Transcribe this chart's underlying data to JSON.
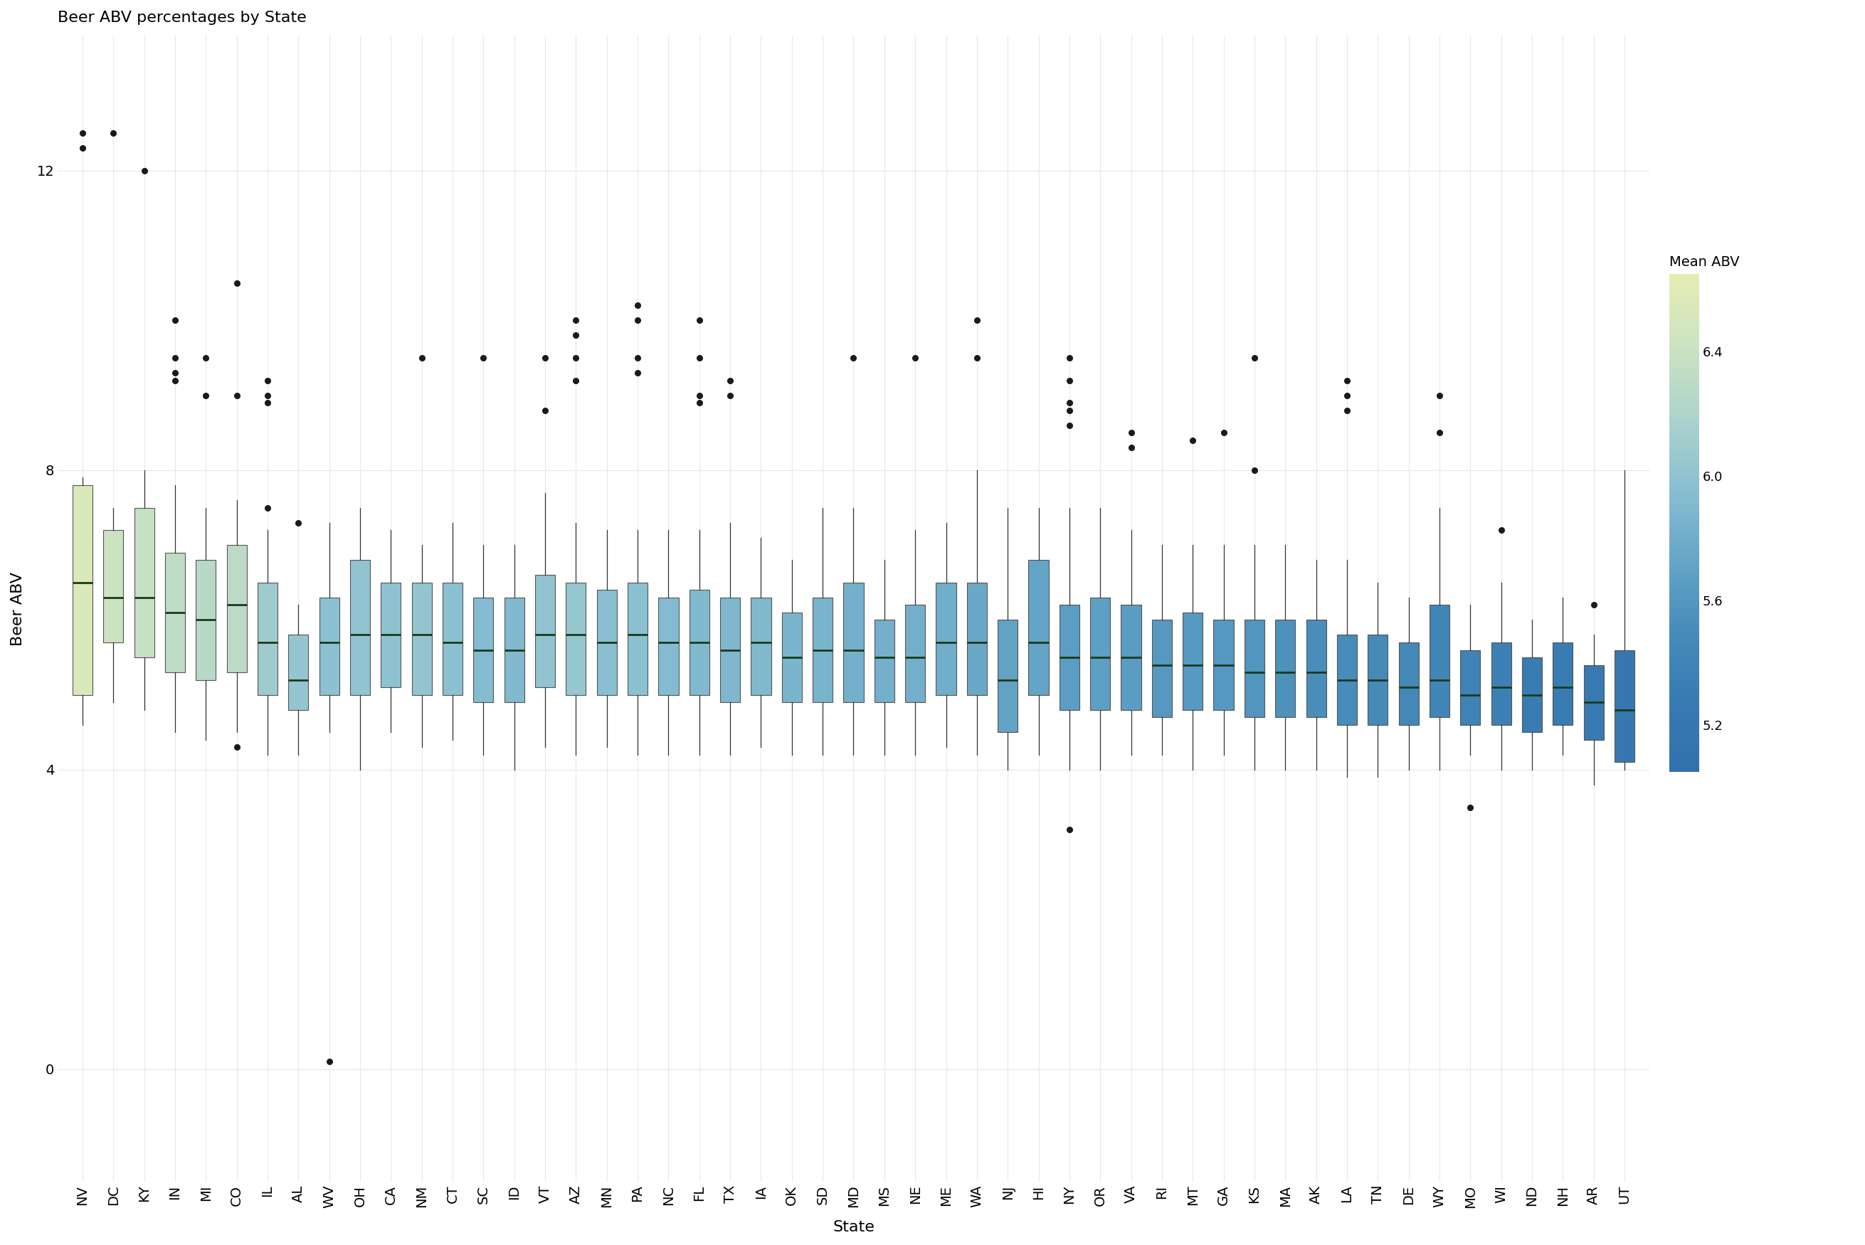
{
  "title": "Beer ABV percentages by State",
  "xlabel": "State",
  "ylabel": "Beer ABV",
  "legend_title": "Mean ABV",
  "colorbar_min": 5.05,
  "colorbar_max": 6.65,
  "colorbar_ticks": [
    5.2,
    5.6,
    6.0,
    6.4
  ],
  "background_color": "#ffffff",
  "panel_color": "#ffffff",
  "grid_color": "#e8e8e8",
  "states": [
    "NV",
    "DC",
    "KY",
    "IN",
    "MI",
    "CO",
    "IL",
    "AL",
    "WV",
    "OH",
    "CA",
    "NM",
    "CT",
    "SC",
    "ID",
    "VT",
    "AZ",
    "MN",
    "PA",
    "NC",
    "FL",
    "TX",
    "IA",
    "OK",
    "SD",
    "MD",
    "MS",
    "NE",
    "ME",
    "WA",
    "NJ",
    "HI",
    "NY",
    "OR",
    "VA",
    "RI",
    "MT",
    "GA",
    "KS",
    "MA",
    "AK",
    "LA",
    "TN",
    "DE",
    "WY",
    "MO",
    "WI",
    "ND",
    "NH",
    "AR",
    "UT"
  ],
  "mean_abv": [
    6.55,
    6.42,
    6.38,
    6.32,
    6.28,
    6.3,
    6.1,
    6.03,
    5.98,
    6.01,
    5.99,
    6.02,
    5.97,
    5.93,
    5.91,
    6.01,
    6.04,
    5.96,
    5.97,
    5.93,
    5.91,
    5.89,
    5.9,
    5.87,
    5.86,
    5.83,
    5.83,
    5.82,
    5.81,
    5.76,
    5.7,
    5.72,
    5.66,
    5.68,
    5.65,
    5.61,
    5.63,
    5.61,
    5.59,
    5.55,
    5.52,
    5.5,
    5.48,
    5.45,
    5.42,
    5.38,
    5.35,
    5.3,
    5.29,
    5.24,
    5.2
  ],
  "box_data": {
    "NV": {
      "q1": 5.0,
      "med": 6.5,
      "q3": 7.8,
      "whislo": 4.6,
      "whishi": 7.9,
      "fliers": [
        12.5,
        12.3
      ]
    },
    "DC": {
      "q1": 5.7,
      "med": 6.3,
      "q3": 7.2,
      "whislo": 4.9,
      "whishi": 7.5,
      "fliers": [
        12.5
      ]
    },
    "KY": {
      "q1": 5.5,
      "med": 6.3,
      "q3": 7.5,
      "whislo": 4.8,
      "whishi": 8.0,
      "fliers": [
        12.0
      ]
    },
    "IN": {
      "q1": 5.3,
      "med": 6.1,
      "q3": 6.9,
      "whislo": 4.5,
      "whishi": 7.8,
      "fliers": [
        10.0,
        9.5,
        9.3,
        9.2
      ]
    },
    "MI": {
      "q1": 5.2,
      "med": 6.0,
      "q3": 6.8,
      "whislo": 4.4,
      "whishi": 7.5,
      "fliers": [
        9.5,
        9.0
      ]
    },
    "CO": {
      "q1": 5.3,
      "med": 6.2,
      "q3": 7.0,
      "whislo": 4.5,
      "whishi": 7.6,
      "fliers": [
        10.5,
        9.0,
        4.3
      ]
    },
    "IL": {
      "q1": 5.0,
      "med": 5.7,
      "q3": 6.5,
      "whislo": 4.2,
      "whishi": 7.2,
      "fliers": [
        9.2,
        9.0,
        8.9,
        7.5
      ]
    },
    "AL": {
      "q1": 4.8,
      "med": 5.2,
      "q3": 5.8,
      "whislo": 4.2,
      "whishi": 6.2,
      "fliers": [
        7.3
      ]
    },
    "WV": {
      "q1": 5.0,
      "med": 5.7,
      "q3": 6.3,
      "whislo": 4.5,
      "whishi": 7.3,
      "fliers": [
        0.1
      ]
    },
    "OH": {
      "q1": 5.0,
      "med": 5.8,
      "q3": 6.8,
      "whislo": 4.0,
      "whishi": 7.5,
      "fliers": []
    },
    "CA": {
      "q1": 5.1,
      "med": 5.8,
      "q3": 6.5,
      "whislo": 4.5,
      "whishi": 7.2,
      "fliers": []
    },
    "NM": {
      "q1": 5.0,
      "med": 5.8,
      "q3": 6.5,
      "whislo": 4.3,
      "whishi": 7.0,
      "fliers": [
        9.5
      ]
    },
    "CT": {
      "q1": 5.0,
      "med": 5.7,
      "q3": 6.5,
      "whislo": 4.4,
      "whishi": 7.3,
      "fliers": []
    },
    "SC": {
      "q1": 4.9,
      "med": 5.6,
      "q3": 6.3,
      "whislo": 4.2,
      "whishi": 7.0,
      "fliers": [
        9.5
      ]
    },
    "ID": {
      "q1": 4.9,
      "med": 5.6,
      "q3": 6.3,
      "whislo": 4.0,
      "whishi": 7.0,
      "fliers": []
    },
    "VT": {
      "q1": 5.1,
      "med": 5.8,
      "q3": 6.6,
      "whislo": 4.3,
      "whishi": 7.7,
      "fliers": [
        9.5,
        8.8
      ]
    },
    "AZ": {
      "q1": 5.0,
      "med": 5.8,
      "q3": 6.5,
      "whislo": 4.2,
      "whishi": 7.3,
      "fliers": [
        9.5,
        9.2,
        9.8,
        10.0
      ]
    },
    "MN": {
      "q1": 5.0,
      "med": 5.7,
      "q3": 6.4,
      "whislo": 4.3,
      "whishi": 7.2,
      "fliers": []
    },
    "PA": {
      "q1": 5.0,
      "med": 5.8,
      "q3": 6.5,
      "whislo": 4.2,
      "whishi": 7.2,
      "fliers": [
        9.5,
        9.3,
        10.0,
        10.2
      ]
    },
    "NC": {
      "q1": 5.0,
      "med": 5.7,
      "q3": 6.3,
      "whislo": 4.2,
      "whishi": 7.2,
      "fliers": []
    },
    "FL": {
      "q1": 5.0,
      "med": 5.7,
      "q3": 6.4,
      "whislo": 4.2,
      "whishi": 7.2,
      "fliers": [
        8.9,
        9.0,
        9.5,
        10.0
      ]
    },
    "TX": {
      "q1": 4.9,
      "med": 5.6,
      "q3": 6.3,
      "whislo": 4.2,
      "whishi": 7.3,
      "fliers": [
        9.0,
        9.2
      ]
    },
    "IA": {
      "q1": 5.0,
      "med": 5.7,
      "q3": 6.3,
      "whislo": 4.3,
      "whishi": 7.1,
      "fliers": []
    },
    "OK": {
      "q1": 4.9,
      "med": 5.5,
      "q3": 6.1,
      "whislo": 4.2,
      "whishi": 6.8,
      "fliers": []
    },
    "SD": {
      "q1": 4.9,
      "med": 5.6,
      "q3": 6.3,
      "whislo": 4.2,
      "whishi": 7.5,
      "fliers": []
    },
    "MD": {
      "q1": 4.9,
      "med": 5.6,
      "q3": 6.5,
      "whislo": 4.2,
      "whishi": 7.5,
      "fliers": [
        9.5
      ]
    },
    "MS": {
      "q1": 4.9,
      "med": 5.5,
      "q3": 6.0,
      "whislo": 4.2,
      "whishi": 6.8,
      "fliers": []
    },
    "NE": {
      "q1": 4.9,
      "med": 5.5,
      "q3": 6.2,
      "whislo": 4.2,
      "whishi": 7.2,
      "fliers": [
        9.5
      ]
    },
    "ME": {
      "q1": 5.0,
      "med": 5.7,
      "q3": 6.5,
      "whislo": 4.3,
      "whishi": 7.3,
      "fliers": []
    },
    "WA": {
      "q1": 5.0,
      "med": 5.7,
      "q3": 6.5,
      "whislo": 4.2,
      "whishi": 8.0,
      "fliers": [
        10.0,
        9.5
      ]
    },
    "NJ": {
      "q1": 4.5,
      "med": 5.2,
      "q3": 6.0,
      "whislo": 4.0,
      "whishi": 7.5,
      "fliers": []
    },
    "HI": {
      "q1": 5.0,
      "med": 5.7,
      "q3": 6.8,
      "whislo": 4.2,
      "whishi": 7.5,
      "fliers": []
    },
    "NY": {
      "q1": 4.8,
      "med": 5.5,
      "q3": 6.2,
      "whislo": 4.0,
      "whishi": 7.5,
      "fliers": [
        9.5,
        9.2,
        8.9,
        8.8,
        8.6,
        3.2
      ]
    },
    "OR": {
      "q1": 4.8,
      "med": 5.5,
      "q3": 6.3,
      "whislo": 4.0,
      "whishi": 7.5,
      "fliers": []
    },
    "VA": {
      "q1": 4.8,
      "med": 5.5,
      "q3": 6.2,
      "whislo": 4.2,
      "whishi": 7.2,
      "fliers": [
        8.5,
        8.3
      ]
    },
    "RI": {
      "q1": 4.7,
      "med": 5.4,
      "q3": 6.0,
      "whislo": 4.2,
      "whishi": 7.0,
      "fliers": []
    },
    "MT": {
      "q1": 4.8,
      "med": 5.4,
      "q3": 6.1,
      "whislo": 4.0,
      "whishi": 7.0,
      "fliers": [
        8.4
      ]
    },
    "GA": {
      "q1": 4.8,
      "med": 5.4,
      "q3": 6.0,
      "whislo": 4.2,
      "whishi": 7.0,
      "fliers": [
        8.5
      ]
    },
    "KS": {
      "q1": 4.7,
      "med": 5.3,
      "q3": 6.0,
      "whislo": 4.0,
      "whishi": 7.0,
      "fliers": [
        8.0,
        9.5
      ]
    },
    "MA": {
      "q1": 4.7,
      "med": 5.3,
      "q3": 6.0,
      "whislo": 4.0,
      "whishi": 7.0,
      "fliers": []
    },
    "AK": {
      "q1": 4.7,
      "med": 5.3,
      "q3": 6.0,
      "whislo": 4.0,
      "whishi": 6.8,
      "fliers": []
    },
    "LA": {
      "q1": 4.6,
      "med": 5.2,
      "q3": 5.8,
      "whislo": 3.9,
      "whishi": 6.8,
      "fliers": [
        9.2,
        9.0,
        8.8
      ]
    },
    "TN": {
      "q1": 4.6,
      "med": 5.2,
      "q3": 5.8,
      "whislo": 3.9,
      "whishi": 6.5,
      "fliers": []
    },
    "DE": {
      "q1": 4.6,
      "med": 5.1,
      "q3": 5.7,
      "whislo": 4.0,
      "whishi": 6.3,
      "fliers": []
    },
    "WY": {
      "q1": 4.7,
      "med": 5.2,
      "q3": 6.2,
      "whislo": 4.0,
      "whishi": 7.5,
      "fliers": [
        9.0,
        8.5
      ]
    },
    "MO": {
      "q1": 4.6,
      "med": 5.0,
      "q3": 5.6,
      "whislo": 4.2,
      "whishi": 6.2,
      "fliers": [
        3.5
      ]
    },
    "WI": {
      "q1": 4.6,
      "med": 5.1,
      "q3": 5.7,
      "whislo": 4.0,
      "whishi": 6.5,
      "fliers": [
        7.2
      ]
    },
    "ND": {
      "q1": 4.5,
      "med": 5.0,
      "q3": 5.5,
      "whislo": 4.0,
      "whishi": 6.0,
      "fliers": []
    },
    "NH": {
      "q1": 4.6,
      "med": 5.1,
      "q3": 5.7,
      "whislo": 4.2,
      "whishi": 6.3,
      "fliers": []
    },
    "AR": {
      "q1": 4.4,
      "med": 4.9,
      "q3": 5.4,
      "whislo": 3.8,
      "whishi": 5.8,
      "fliers": [
        6.2
      ]
    },
    "UT": {
      "q1": 4.1,
      "med": 4.8,
      "q3": 5.6,
      "whislo": 4.0,
      "whishi": 8.0,
      "fliers": []
    }
  }
}
